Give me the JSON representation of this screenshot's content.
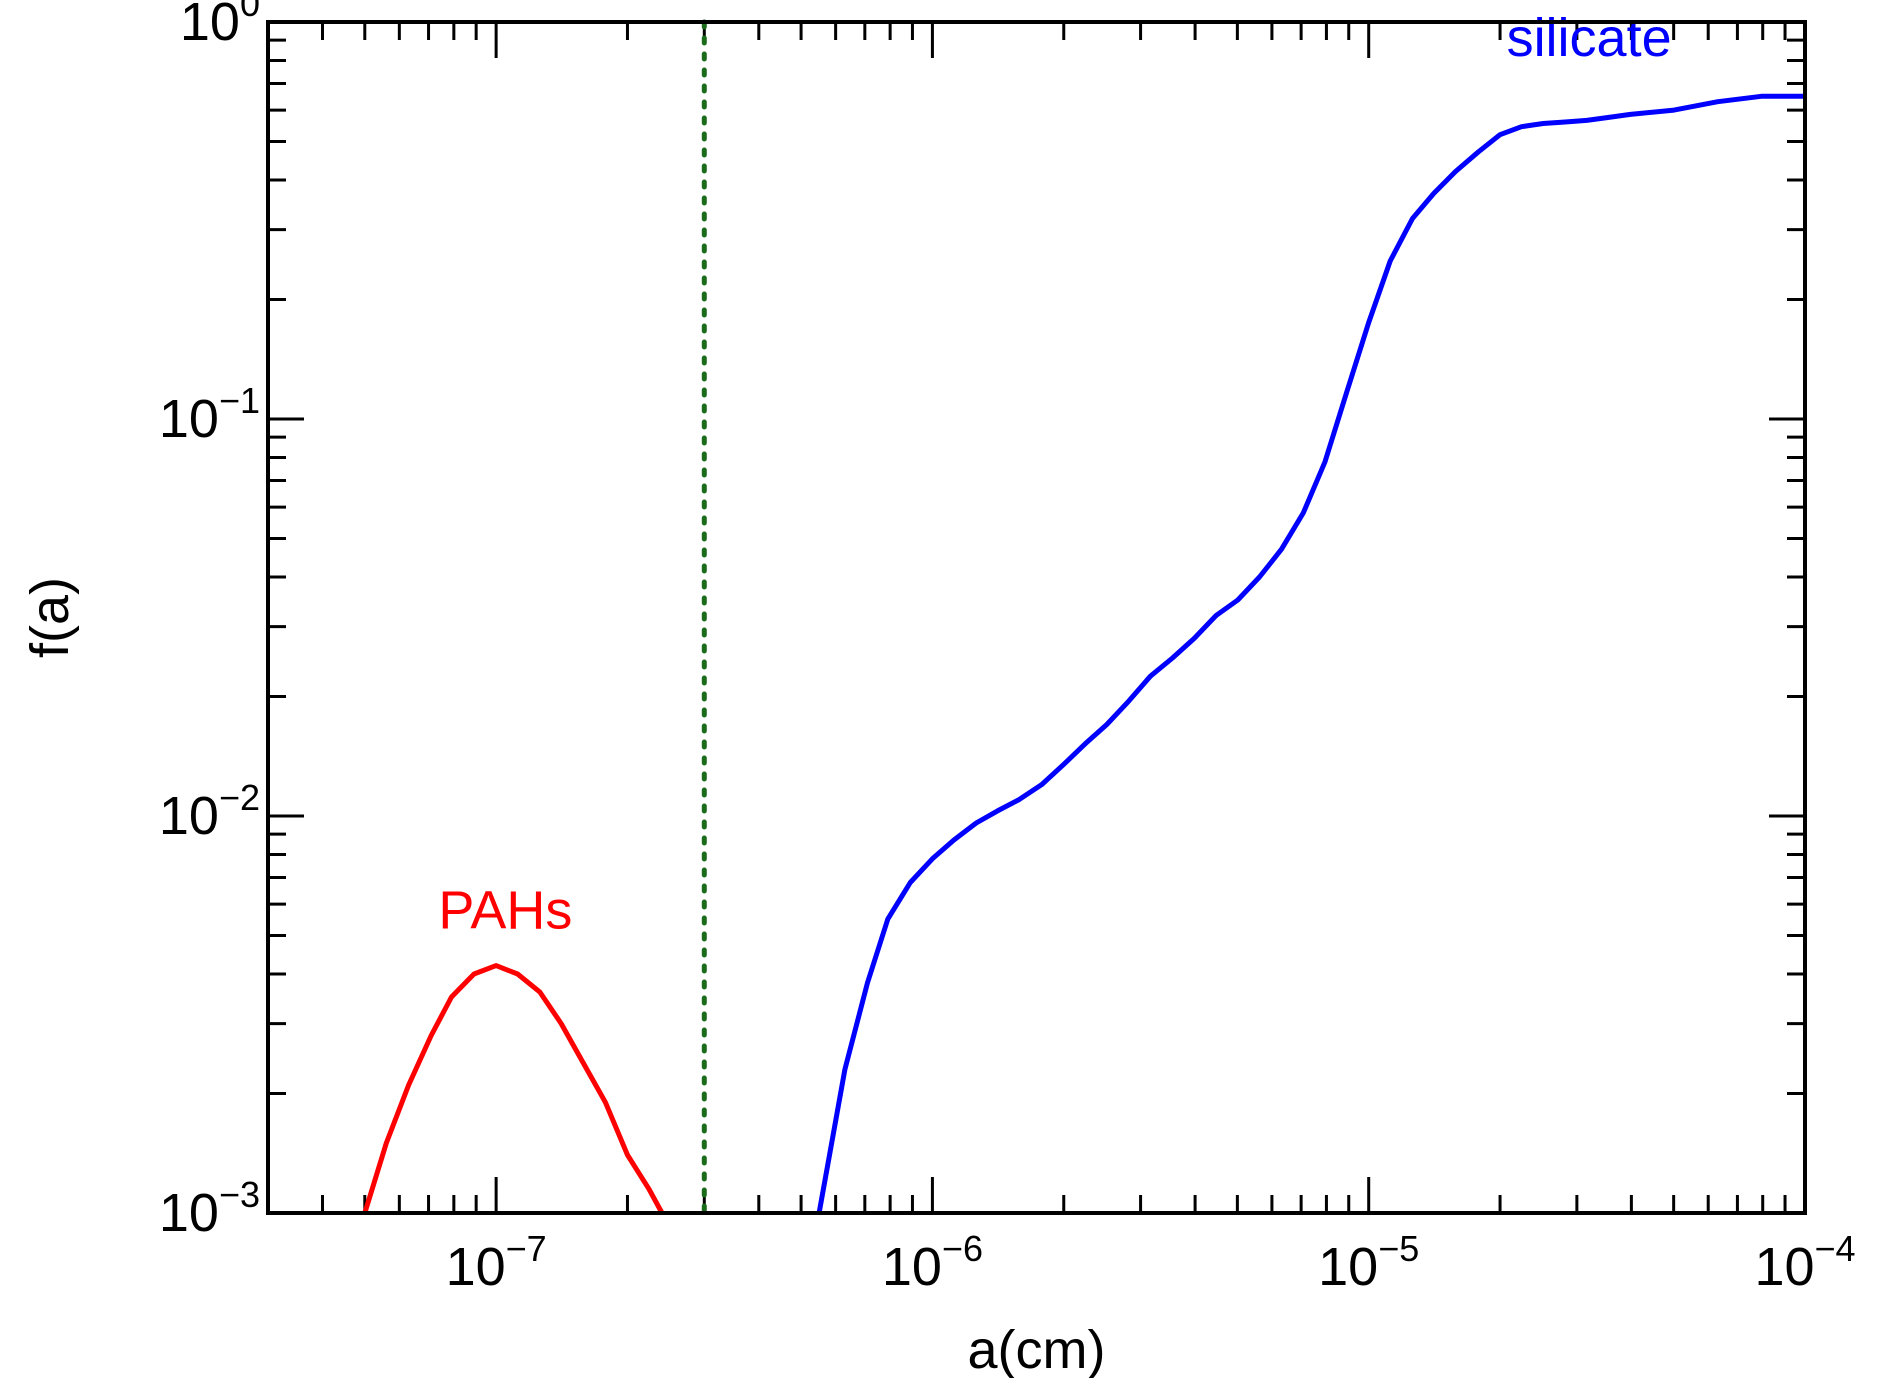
{
  "chart_data": {
    "type": "line",
    "xlabel": "a(cm)",
    "ylabel": "f(a)",
    "xscale": "log",
    "yscale": "log",
    "xlim": [
      3e-08,
      0.0001
    ],
    "ylim": [
      0.001,
      1
    ],
    "grid": false,
    "x_ticks": [
      {
        "value": 1e-07,
        "base": "10",
        "exp": "−7"
      },
      {
        "value": 1e-06,
        "base": "10",
        "exp": "−6"
      },
      {
        "value": 1e-05,
        "base": "10",
        "exp": "−5"
      },
      {
        "value": 0.0001,
        "base": "10",
        "exp": "−4"
      }
    ],
    "y_ticks": [
      {
        "value": 0.001,
        "base": "10",
        "exp": "−3"
      },
      {
        "value": 0.01,
        "base": "10",
        "exp": "−2"
      },
      {
        "value": 0.1,
        "base": "10",
        "exp": "−1"
      },
      {
        "value": 1,
        "base": "10",
        "exp": "0"
      }
    ],
    "vline": {
      "x": 3e-07,
      "color": "#1a6b1a",
      "style": "dotted"
    },
    "series": [
      {
        "name": "PAHs",
        "color": "#ff0000",
        "points": [
          [
            5e-08,
            0.001
          ],
          [
            5.6e-08,
            0.0015
          ],
          [
            6.3e-08,
            0.0021
          ],
          [
            7.1e-08,
            0.0028
          ],
          [
            7.9e-08,
            0.0035
          ],
          [
            8.9e-08,
            0.004
          ],
          [
            1e-07,
            0.0042
          ],
          [
            1.12e-07,
            0.004
          ],
          [
            1.26e-07,
            0.0036
          ],
          [
            1.41e-07,
            0.003
          ],
          [
            1.58e-07,
            0.0024
          ],
          [
            1.78e-07,
            0.0019
          ],
          [
            2e-07,
            0.0014
          ],
          [
            2.24e-07,
            0.00115
          ],
          [
            2.4e-07,
            0.001
          ]
        ],
        "label_pos": {
          "x": 1.05e-07,
          "y": 0.0052
        }
      },
      {
        "name": "silicate",
        "color": "#0000ff",
        "points": [
          [
            5.5e-07,
            0.001
          ],
          [
            6.3e-07,
            0.0023
          ],
          [
            7.1e-07,
            0.0038
          ],
          [
            7.9e-07,
            0.0055
          ],
          [
            8.9e-07,
            0.0068
          ],
          [
            1e-06,
            0.0078
          ],
          [
            1.12e-06,
            0.0087
          ],
          [
            1.26e-06,
            0.0096
          ],
          [
            1.41e-06,
            0.0103
          ],
          [
            1.58e-06,
            0.011
          ],
          [
            1.78e-06,
            0.012
          ],
          [
            2e-06,
            0.0135
          ],
          [
            2.24e-06,
            0.0152
          ],
          [
            2.51e-06,
            0.017
          ],
          [
            2.82e-06,
            0.0195
          ],
          [
            3.16e-06,
            0.0225
          ],
          [
            3.55e-06,
            0.025
          ],
          [
            3.98e-06,
            0.028
          ],
          [
            4.47e-06,
            0.032
          ],
          [
            5.01e-06,
            0.035
          ],
          [
            5.62e-06,
            0.04
          ],
          [
            6.31e-06,
            0.047
          ],
          [
            7.08e-06,
            0.058
          ],
          [
            7.94e-06,
            0.078
          ],
          [
            8.91e-06,
            0.117
          ],
          [
            1e-05,
            0.175
          ],
          [
            1.12e-05,
            0.25
          ],
          [
            1.26e-05,
            0.32
          ],
          [
            1.41e-05,
            0.37
          ],
          [
            1.58e-05,
            0.42
          ],
          [
            1.78e-05,
            0.47
          ],
          [
            2e-05,
            0.52
          ],
          [
            2.24e-05,
            0.545
          ],
          [
            2.51e-05,
            0.555
          ],
          [
            2.82e-05,
            0.56
          ],
          [
            3.16e-05,
            0.565
          ],
          [
            3.55e-05,
            0.575
          ],
          [
            3.98e-05,
            0.585
          ],
          [
            5.01e-05,
            0.6
          ],
          [
            6.31e-05,
            0.63
          ],
          [
            7.94e-05,
            0.65
          ],
          [
            0.0001,
            0.65
          ]
        ],
        "label_pos": {
          "x": 3.2e-05,
          "y": 0.82
        }
      }
    ]
  }
}
